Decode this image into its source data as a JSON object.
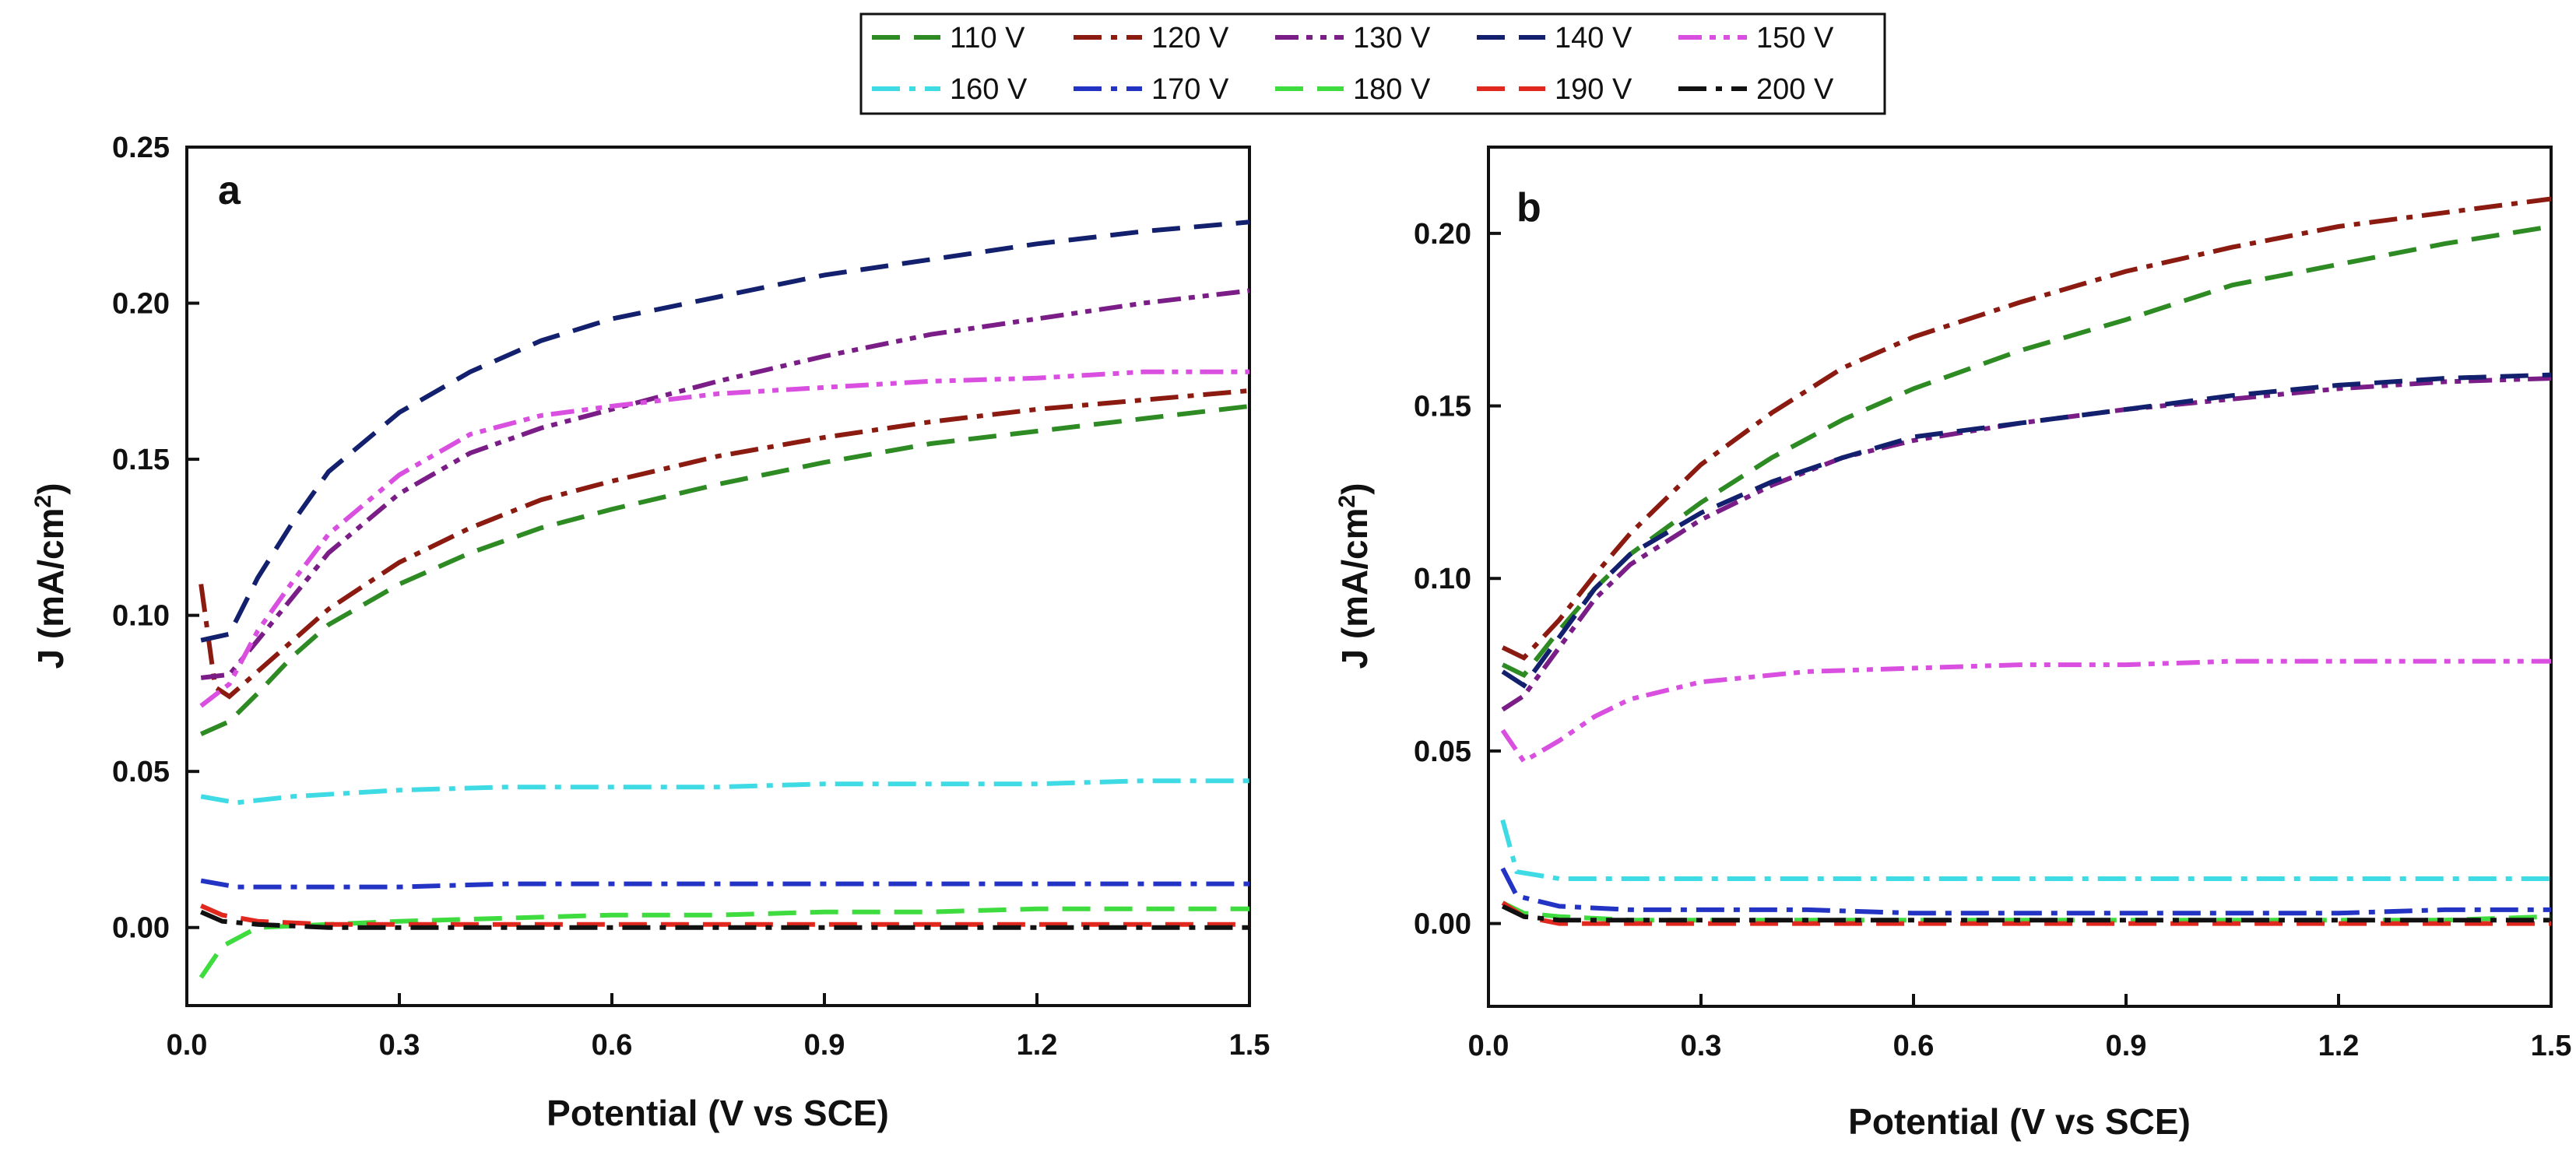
{
  "legend": {
    "entries": [
      {
        "label": "110 V",
        "color": "#2e8b23",
        "dash": "dash"
      },
      {
        "label": "120 V",
        "color": "#8b1a10",
        "dash": "dashdot"
      },
      {
        "label": "130 V",
        "color": "#7a1d87",
        "dash": "dashdotdot"
      },
      {
        "label": "140 V",
        "color": "#12206e",
        "dash": "dash"
      },
      {
        "label": "150 V",
        "color": "#d94fe0",
        "dash": "dashdotdot"
      },
      {
        "label": "160 V",
        "color": "#3fdbe5",
        "dash": "dashdot"
      },
      {
        "label": "170 V",
        "color": "#2333c4",
        "dash": "dashdot"
      },
      {
        "label": "180 V",
        "color": "#3edc3e",
        "dash": "dash"
      },
      {
        "label": "190 V",
        "color": "#e0281e",
        "dash": "dash"
      },
      {
        "label": "200 V",
        "color": "#111111",
        "dash": "dashdot"
      }
    ]
  },
  "chart_data": [
    {
      "type": "line",
      "panel_label": "a",
      "xlabel": "Potential (V vs SCE)",
      "ylabel_main": "J (mA/cm",
      "ylabel_sup": "2",
      "ylabel_close": ")",
      "xlim": [
        0,
        1.5
      ],
      "ylim": [
        -0.025,
        0.25
      ],
      "xticks": [
        0.0,
        0.3,
        0.6,
        0.9,
        1.2,
        1.5
      ],
      "xtick_labels": [
        "0.0",
        "0.3",
        "0.6",
        "0.9",
        "1.2",
        "1.5"
      ],
      "yticks": [
        0.0,
        0.05,
        0.1,
        0.15,
        0.2,
        0.25
      ],
      "ytick_labels": [
        "0.00",
        "0.05",
        "0.10",
        "0.15",
        "0.20",
        "0.25"
      ],
      "series": [
        {
          "name": "110 V",
          "x": [
            0.02,
            0.06,
            0.1,
            0.15,
            0.2,
            0.3,
            0.4,
            0.5,
            0.6,
            0.75,
            0.9,
            1.05,
            1.2,
            1.35,
            1.5
          ],
          "y": [
            0.062,
            0.066,
            0.075,
            0.087,
            0.097,
            0.11,
            0.12,
            0.128,
            0.134,
            0.142,
            0.149,
            0.155,
            0.159,
            0.163,
            0.167
          ]
        },
        {
          "name": "120 V",
          "x": [
            0.02,
            0.04,
            0.06,
            0.1,
            0.15,
            0.2,
            0.3,
            0.4,
            0.5,
            0.6,
            0.75,
            0.9,
            1.05,
            1.2,
            1.35,
            1.5
          ],
          "y": [
            0.11,
            0.077,
            0.074,
            0.082,
            0.092,
            0.102,
            0.117,
            0.128,
            0.137,
            0.143,
            0.151,
            0.157,
            0.162,
            0.166,
            0.169,
            0.172
          ]
        },
        {
          "name": "130 V",
          "x": [
            0.02,
            0.06,
            0.1,
            0.15,
            0.2,
            0.3,
            0.4,
            0.5,
            0.6,
            0.75,
            0.9,
            1.05,
            1.2,
            1.35,
            1.5
          ],
          "y": [
            0.08,
            0.081,
            0.092,
            0.106,
            0.12,
            0.139,
            0.152,
            0.16,
            0.166,
            0.175,
            0.183,
            0.19,
            0.195,
            0.2,
            0.204
          ]
        },
        {
          "name": "140 V",
          "x": [
            0.02,
            0.06,
            0.1,
            0.15,
            0.2,
            0.3,
            0.4,
            0.5,
            0.6,
            0.75,
            0.9,
            1.05,
            1.2,
            1.35,
            1.5
          ],
          "y": [
            0.092,
            0.094,
            0.112,
            0.13,
            0.146,
            0.165,
            0.178,
            0.188,
            0.195,
            0.202,
            0.209,
            0.214,
            0.219,
            0.223,
            0.226
          ]
        },
        {
          "name": "150 V",
          "x": [
            0.02,
            0.06,
            0.1,
            0.15,
            0.2,
            0.3,
            0.4,
            0.5,
            0.6,
            0.75,
            0.9,
            1.05,
            1.2,
            1.35,
            1.5
          ],
          "y": [
            0.071,
            0.078,
            0.095,
            0.111,
            0.126,
            0.145,
            0.158,
            0.164,
            0.167,
            0.171,
            0.173,
            0.175,
            0.176,
            0.178,
            0.178
          ]
        },
        {
          "name": "160 V",
          "x": [
            0.02,
            0.07,
            0.15,
            0.3,
            0.45,
            0.6,
            0.75,
            0.9,
            1.05,
            1.2,
            1.35,
            1.5
          ],
          "y": [
            0.042,
            0.04,
            0.042,
            0.044,
            0.045,
            0.045,
            0.045,
            0.046,
            0.046,
            0.046,
            0.047,
            0.047
          ]
        },
        {
          "name": "170 V",
          "x": [
            0.02,
            0.07,
            0.15,
            0.3,
            0.45,
            0.6,
            0.75,
            0.9,
            1.05,
            1.2,
            1.35,
            1.5
          ],
          "y": [
            0.015,
            0.013,
            0.013,
            0.013,
            0.014,
            0.014,
            0.014,
            0.014,
            0.014,
            0.014,
            0.014,
            0.014
          ]
        },
        {
          "name": "180 V",
          "x": [
            0.02,
            0.05,
            0.1,
            0.2,
            0.3,
            0.45,
            0.6,
            0.75,
            0.9,
            1.05,
            1.2,
            1.35,
            1.5
          ],
          "y": [
            -0.016,
            -0.006,
            0.0,
            0.001,
            0.002,
            0.003,
            0.004,
            0.004,
            0.005,
            0.005,
            0.006,
            0.006,
            0.006
          ]
        },
        {
          "name": "190 V",
          "x": [
            0.02,
            0.05,
            0.1,
            0.2,
            0.3,
            0.45,
            0.6,
            0.75,
            0.9,
            1.05,
            1.2,
            1.35,
            1.5
          ],
          "y": [
            0.007,
            0.004,
            0.002,
            0.001,
            0.001,
            0.001,
            0.001,
            0.001,
            0.001,
            0.001,
            0.001,
            0.001,
            0.001
          ]
        },
        {
          "name": "200 V",
          "x": [
            0.02,
            0.05,
            0.1,
            0.2,
            0.3,
            0.45,
            0.6,
            0.75,
            0.9,
            1.05,
            1.2,
            1.35,
            1.5
          ],
          "y": [
            0.005,
            0.002,
            0.001,
            0.0,
            0.0,
            0.0,
            0.0,
            0.0,
            0.0,
            0.0,
            0.0,
            0.0,
            0.0
          ]
        }
      ]
    },
    {
      "type": "line",
      "panel_label": "b",
      "xlabel": "Potential (V vs SCE)",
      "ylabel_main": "J (mA/cm",
      "ylabel_sup": "2",
      "ylabel_close": ")",
      "xlim": [
        0,
        1.5
      ],
      "ylim": [
        -0.024,
        0.225
      ],
      "xticks": [
        0.0,
        0.3,
        0.6,
        0.9,
        1.2,
        1.5
      ],
      "xtick_labels": [
        "0.0",
        "0.3",
        "0.6",
        "0.9",
        "1.2",
        "1.5"
      ],
      "yticks": [
        0.0,
        0.05,
        0.1,
        0.15,
        0.2
      ],
      "ytick_labels": [
        "0.00",
        "0.05",
        "0.10",
        "0.15",
        "0.20"
      ],
      "series": [
        {
          "name": "110 V",
          "x": [
            0.02,
            0.05,
            0.1,
            0.15,
            0.2,
            0.3,
            0.4,
            0.5,
            0.6,
            0.75,
            0.9,
            1.05,
            1.2,
            1.35,
            1.5
          ],
          "y": [
            0.075,
            0.072,
            0.085,
            0.097,
            0.107,
            0.122,
            0.135,
            0.146,
            0.155,
            0.166,
            0.175,
            0.185,
            0.191,
            0.197,
            0.202
          ]
        },
        {
          "name": "120 V",
          "x": [
            0.02,
            0.05,
            0.1,
            0.15,
            0.2,
            0.3,
            0.4,
            0.5,
            0.6,
            0.75,
            0.9,
            1.05,
            1.2,
            1.35,
            1.5
          ],
          "y": [
            0.08,
            0.077,
            0.088,
            0.101,
            0.113,
            0.133,
            0.148,
            0.161,
            0.17,
            0.18,
            0.189,
            0.196,
            0.202,
            0.206,
            0.21
          ]
        },
        {
          "name": "130 V",
          "x": [
            0.02,
            0.05,
            0.1,
            0.15,
            0.2,
            0.3,
            0.4,
            0.5,
            0.6,
            0.75,
            0.9,
            1.05,
            1.2,
            1.35,
            1.5
          ],
          "y": [
            0.062,
            0.066,
            0.08,
            0.094,
            0.104,
            0.117,
            0.127,
            0.135,
            0.14,
            0.145,
            0.149,
            0.152,
            0.155,
            0.157,
            0.158
          ]
        },
        {
          "name": "140 V",
          "x": [
            0.02,
            0.05,
            0.1,
            0.15,
            0.2,
            0.3,
            0.4,
            0.5,
            0.6,
            0.75,
            0.9,
            1.05,
            1.2,
            1.35,
            1.5
          ],
          "y": [
            0.073,
            0.069,
            0.083,
            0.097,
            0.107,
            0.119,
            0.128,
            0.135,
            0.141,
            0.145,
            0.149,
            0.153,
            0.156,
            0.158,
            0.159
          ]
        },
        {
          "name": "150 V",
          "x": [
            0.02,
            0.05,
            0.1,
            0.15,
            0.2,
            0.3,
            0.45,
            0.6,
            0.75,
            0.9,
            1.05,
            1.2,
            1.35,
            1.5
          ],
          "y": [
            0.056,
            0.047,
            0.053,
            0.06,
            0.065,
            0.07,
            0.073,
            0.074,
            0.075,
            0.075,
            0.076,
            0.076,
            0.076,
            0.076
          ]
        },
        {
          "name": "160 V",
          "x": [
            0.02,
            0.04,
            0.1,
            0.2,
            0.3,
            0.45,
            0.6,
            0.75,
            0.9,
            1.05,
            1.2,
            1.35,
            1.5
          ],
          "y": [
            0.03,
            0.015,
            0.013,
            0.013,
            0.013,
            0.013,
            0.013,
            0.013,
            0.013,
            0.013,
            0.013,
            0.013,
            0.013
          ]
        },
        {
          "name": "170 V",
          "x": [
            0.02,
            0.04,
            0.1,
            0.2,
            0.3,
            0.45,
            0.6,
            0.75,
            0.9,
            1.05,
            1.2,
            1.35,
            1.5
          ],
          "y": [
            0.016,
            0.008,
            0.005,
            0.004,
            0.004,
            0.004,
            0.003,
            0.003,
            0.003,
            0.003,
            0.003,
            0.004,
            0.004
          ]
        },
        {
          "name": "180 V",
          "x": [
            0.02,
            0.05,
            0.1,
            0.2,
            0.3,
            0.45,
            0.6,
            0.75,
            0.9,
            1.05,
            1.2,
            1.35,
            1.5
          ],
          "y": [
            0.006,
            0.003,
            0.002,
            0.001,
            0.001,
            0.001,
            0.001,
            0.001,
            0.001,
            0.001,
            0.001,
            0.001,
            0.002
          ]
        },
        {
          "name": "190 V",
          "x": [
            0.02,
            0.05,
            0.1,
            0.2,
            0.3,
            0.45,
            0.6,
            0.75,
            0.9,
            1.05,
            1.2,
            1.35,
            1.5
          ],
          "y": [
            0.006,
            0.002,
            0.0,
            0.0,
            0.0,
            0.0,
            0.0,
            0.0,
            0.0,
            0.0,
            0.0,
            0.0,
            0.0
          ]
        },
        {
          "name": "200 V",
          "x": [
            0.02,
            0.05,
            0.1,
            0.2,
            0.3,
            0.45,
            0.6,
            0.75,
            0.9,
            1.05,
            1.2,
            1.35,
            1.5
          ],
          "y": [
            0.005,
            0.002,
            0.001,
            0.001,
            0.001,
            0.001,
            0.001,
            0.001,
            0.001,
            0.001,
            0.001,
            0.001,
            0.001
          ]
        }
      ]
    }
  ]
}
